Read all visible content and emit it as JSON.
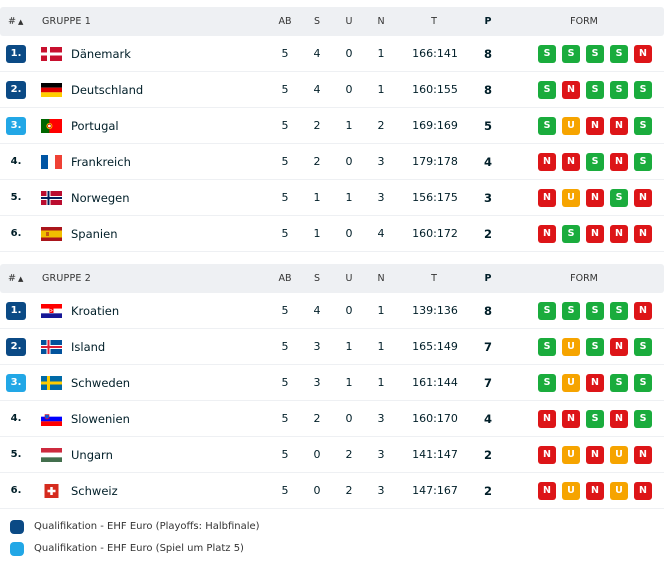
{
  "colors": {
    "qualification_1": "#0b4a85",
    "qualification_2": "#22a7e6",
    "form_win": "#1aac3d",
    "form_loss": "#dd1518",
    "form_draw": "#f6a400",
    "header_bg": "#eef0f3"
  },
  "columns": {
    "rank": "#",
    "ab": "AB",
    "s": "S",
    "u": "U",
    "n": "N",
    "t": "T",
    "p": "P",
    "form": "FORM"
  },
  "groups": [
    {
      "title": "GRUPPE 1",
      "rows": [
        {
          "rank": "1.",
          "qual": "q1",
          "flag": "denmark-flag",
          "team": "Dänemark",
          "ab": "5",
          "s": "4",
          "u": "0",
          "n": "1",
          "t": "166:141",
          "p": "8",
          "form": [
            "S",
            "S",
            "S",
            "S",
            "N"
          ]
        },
        {
          "rank": "2.",
          "qual": "q1",
          "flag": "germany-flag",
          "team": "Deutschland",
          "ab": "5",
          "s": "4",
          "u": "0",
          "n": "1",
          "t": "160:155",
          "p": "8",
          "form": [
            "S",
            "N",
            "S",
            "S",
            "S"
          ]
        },
        {
          "rank": "3.",
          "qual": "q2",
          "flag": "portugal-flag",
          "team": "Portugal",
          "ab": "5",
          "s": "2",
          "u": "1",
          "n": "2",
          "t": "169:169",
          "p": "5",
          "form": [
            "S",
            "U",
            "N",
            "N",
            "S"
          ]
        },
        {
          "rank": "4.",
          "qual": "",
          "flag": "france-flag",
          "team": "Frankreich",
          "ab": "5",
          "s": "2",
          "u": "0",
          "n": "3",
          "t": "179:178",
          "p": "4",
          "form": [
            "N",
            "N",
            "S",
            "N",
            "S"
          ]
        },
        {
          "rank": "5.",
          "qual": "",
          "flag": "norway-flag",
          "team": "Norwegen",
          "ab": "5",
          "s": "1",
          "u": "1",
          "n": "3",
          "t": "156:175",
          "p": "3",
          "form": [
            "N",
            "U",
            "N",
            "S",
            "N"
          ]
        },
        {
          "rank": "6.",
          "qual": "",
          "flag": "spain-flag",
          "team": "Spanien",
          "ab": "5",
          "s": "1",
          "u": "0",
          "n": "4",
          "t": "160:172",
          "p": "2",
          "form": [
            "N",
            "S",
            "N",
            "N",
            "N"
          ]
        }
      ]
    },
    {
      "title": "GRUPPE 2",
      "rows": [
        {
          "rank": "1.",
          "qual": "q1",
          "flag": "croatia-flag",
          "team": "Kroatien",
          "ab": "5",
          "s": "4",
          "u": "0",
          "n": "1",
          "t": "139:136",
          "p": "8",
          "form": [
            "S",
            "S",
            "S",
            "S",
            "N"
          ]
        },
        {
          "rank": "2.",
          "qual": "q1",
          "flag": "iceland-flag",
          "team": "Island",
          "ab": "5",
          "s": "3",
          "u": "1",
          "n": "1",
          "t": "165:149",
          "p": "7",
          "form": [
            "S",
            "U",
            "S",
            "N",
            "S"
          ]
        },
        {
          "rank": "3.",
          "qual": "q2",
          "flag": "sweden-flag",
          "team": "Schweden",
          "ab": "5",
          "s": "3",
          "u": "1",
          "n": "1",
          "t": "161:144",
          "p": "7",
          "form": [
            "S",
            "U",
            "N",
            "S",
            "S"
          ]
        },
        {
          "rank": "4.",
          "qual": "",
          "flag": "slovenia-flag",
          "team": "Slowenien",
          "ab": "5",
          "s": "2",
          "u": "0",
          "n": "3",
          "t": "160:170",
          "p": "4",
          "form": [
            "N",
            "N",
            "S",
            "N",
            "S"
          ]
        },
        {
          "rank": "5.",
          "qual": "",
          "flag": "hungary-flag",
          "team": "Ungarn",
          "ab": "5",
          "s": "0",
          "u": "2",
          "n": "3",
          "t": "141:147",
          "p": "2",
          "form": [
            "N",
            "U",
            "N",
            "U",
            "N"
          ]
        },
        {
          "rank": "6.",
          "qual": "",
          "flag": "switzerland-flag",
          "team": "Schweiz",
          "ab": "5",
          "s": "0",
          "u": "2",
          "n": "3",
          "t": "147:167",
          "p": "2",
          "form": [
            "N",
            "U",
            "N",
            "U",
            "N"
          ]
        }
      ]
    }
  ],
  "legend": [
    {
      "label": "Qualifikation - EHF Euro (Playoffs: Halbfinale)"
    },
    {
      "label": "Qualifikation - EHF Euro (Spiel um Platz 5)"
    }
  ]
}
